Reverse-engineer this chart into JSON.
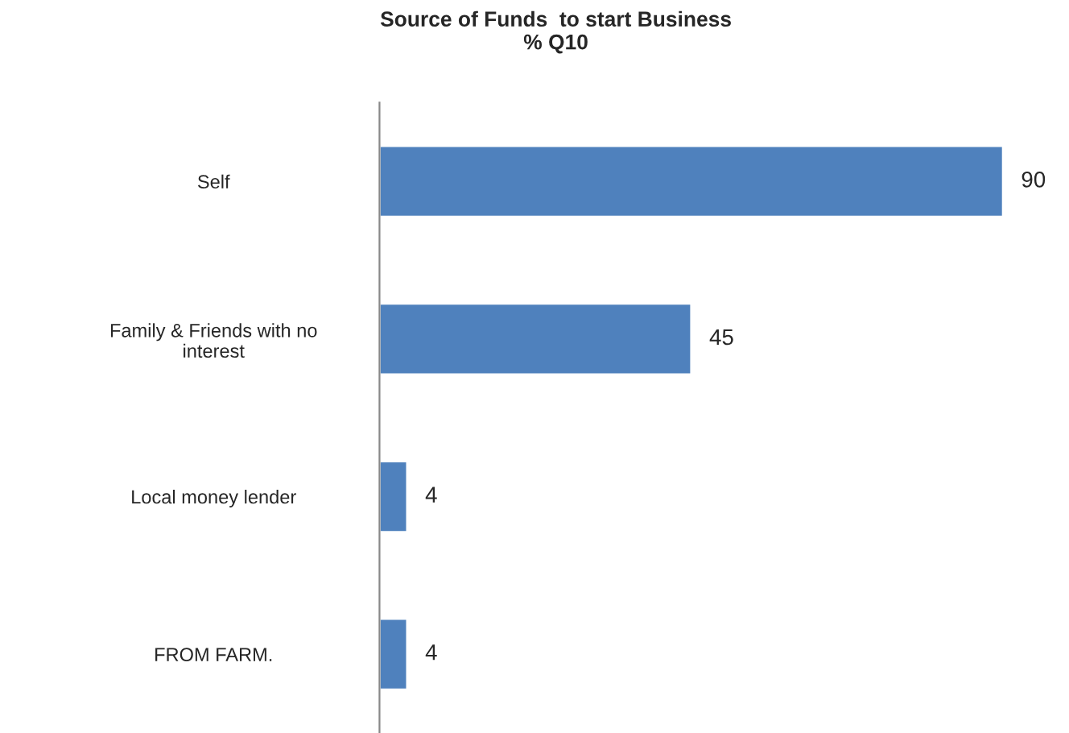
{
  "chart_data": {
    "type": "bar",
    "orientation": "horizontal",
    "title": "Source of Funds  to start Business\n% Q10",
    "categories": [
      "Self",
      "Family & Friends with no\ninterest",
      "Local money lender",
      "FROM FARM."
    ],
    "values": [
      90,
      45,
      4,
      4
    ],
    "color": "#4f81bd",
    "data_labels": true,
    "grid": false,
    "legend": false
  }
}
